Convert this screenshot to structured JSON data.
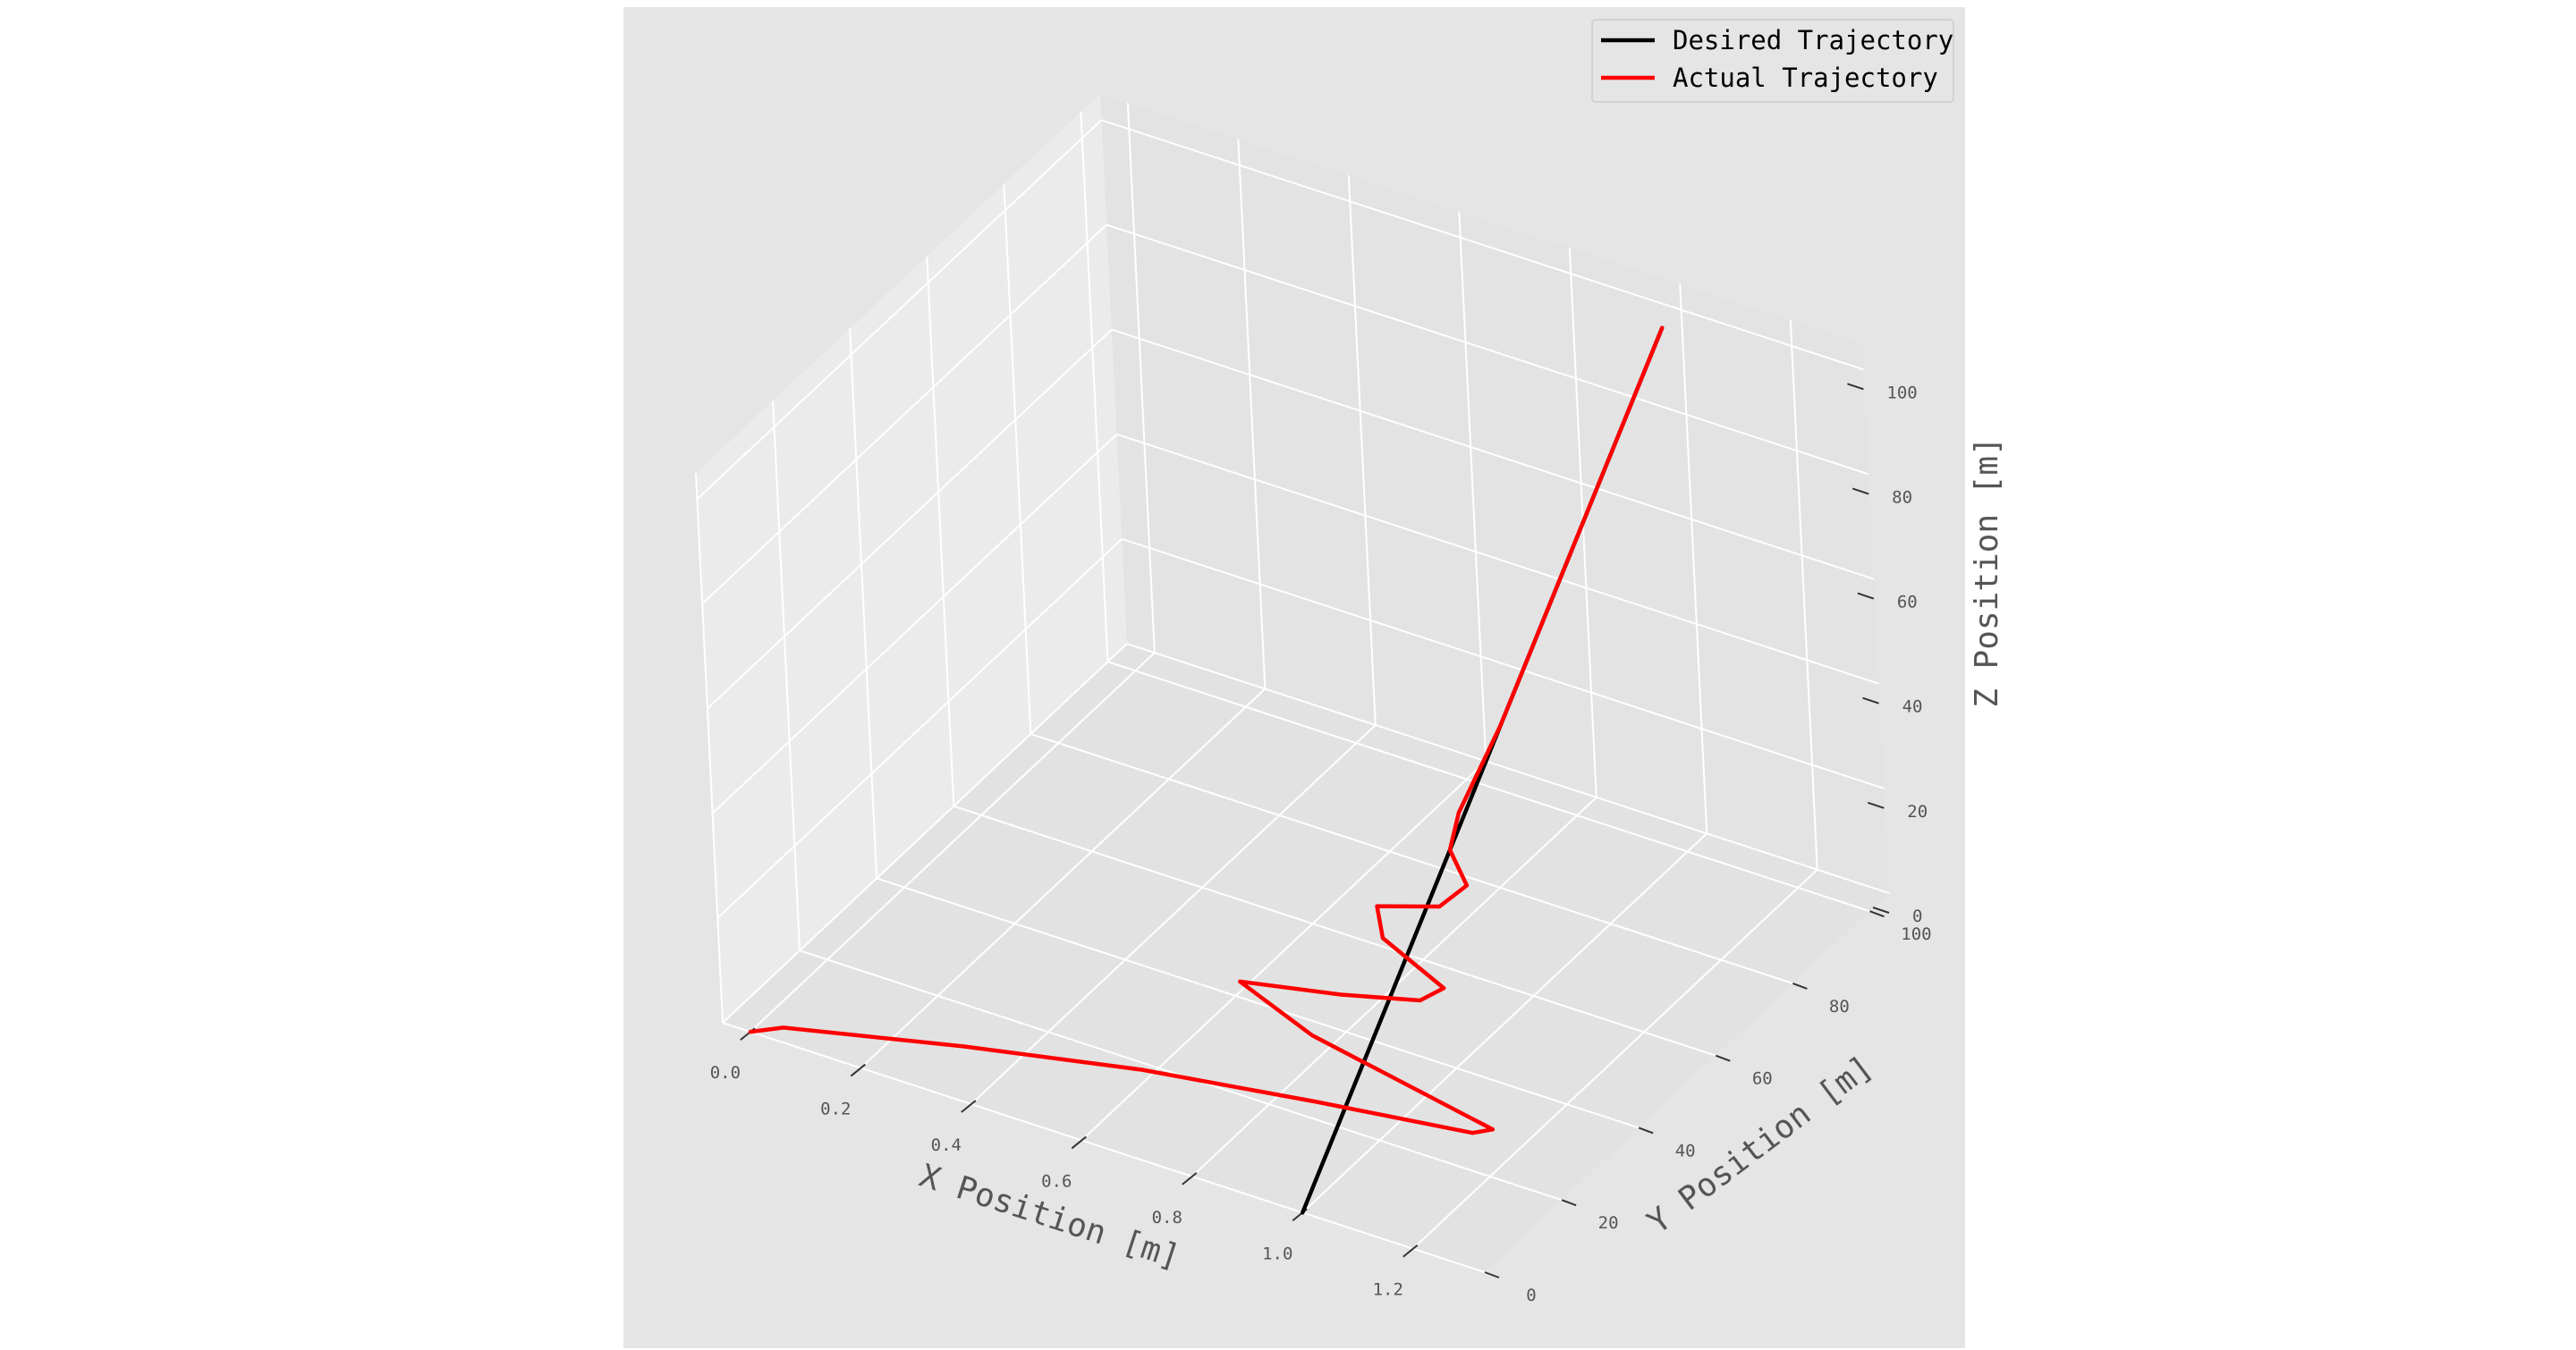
{
  "chart_data": {
    "type": "line",
    "projection": "3d",
    "title": "",
    "xlabel": "X Position [m]",
    "ylabel": "Y Position [m]",
    "zlabel": "Z Position [m]",
    "xlim": [
      -0.05,
      1.33
    ],
    "ylim": [
      0,
      105
    ],
    "zlim": [
      0,
      105
    ],
    "xticks": [
      0.0,
      0.2,
      0.4,
      0.6,
      0.8,
      1.0,
      1.2
    ],
    "xtick_labels": [
      "0.0",
      "0.2",
      "0.4",
      "0.6",
      "0.8",
      "1.0",
      "1.2"
    ],
    "yticks": [
      0,
      20,
      40,
      60,
      80,
      100
    ],
    "ytick_labels": [
      "0",
      "20",
      "40",
      "60",
      "80",
      "100"
    ],
    "zticks": [
      0,
      20,
      40,
      60,
      80,
      100
    ],
    "ztick_labels": [
      "0",
      "20",
      "40",
      "60",
      "80",
      "100"
    ],
    "grid": true,
    "legend": {
      "position": "top-right"
    },
    "series": [
      {
        "name": "Desired Trajectory",
        "color": "#000000",
        "points": [
          [
            1.0,
            0,
            0
          ],
          [
            1.0,
            100,
            100
          ]
        ]
      },
      {
        "name": "Actual Trajectory",
        "color": "#ff0000",
        "points": [
          [
            0.0,
            0,
            0
          ],
          [
            0.05,
            1.5,
            1.5
          ],
          [
            0.35,
            5.5,
            5.5
          ],
          [
            0.65,
            9,
            9
          ],
          [
            0.95,
            11.5,
            11.5
          ],
          [
            1.22,
            13.5,
            13.5
          ],
          [
            1.25,
            14.5,
            14.5
          ],
          [
            0.9,
            18,
            18
          ],
          [
            0.75,
            21,
            21
          ],
          [
            0.92,
            23,
            23
          ],
          [
            1.05,
            25,
            25
          ],
          [
            1.08,
            27,
            27
          ],
          [
            0.95,
            30,
            30
          ],
          [
            0.92,
            33,
            33
          ],
          [
            1.02,
            35,
            35
          ],
          [
            1.05,
            38,
            38
          ],
          [
            1.0,
            41,
            41
          ],
          [
            0.99,
            45,
            45
          ],
          [
            1.0,
            55,
            55
          ],
          [
            1.0,
            70,
            70
          ],
          [
            1.0,
            85,
            85
          ],
          [
            1.0,
            100,
            100
          ]
        ]
      }
    ]
  }
}
